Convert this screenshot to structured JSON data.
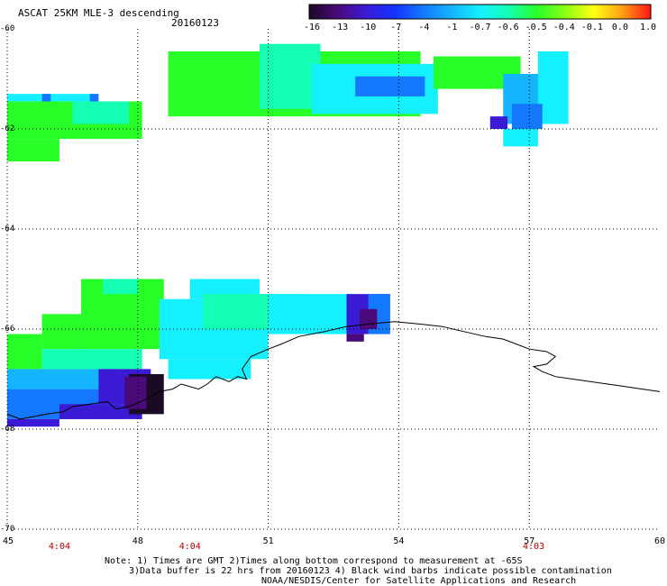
{
  "title": "ASCAT 25KM MLE-3 descending",
  "date": "20160123",
  "colorbar": {
    "labels": [
      "-16",
      "-13",
      "-10",
      "-7",
      "-4",
      "-1",
      "-0.7",
      "-0.6",
      "-0.5",
      "-0.4",
      "-0.1",
      "0.0",
      "1.0"
    ],
    "colors": [
      "#1a0a24",
      "#4a0a7a",
      "#3b1ad6",
      "#1432ff",
      "#1478ff",
      "#14b4ff",
      "#14f0ff",
      "#14ffb4",
      "#28ff28",
      "#8cff14",
      "#ffff14",
      "#ffa014",
      "#ff1414"
    ]
  },
  "axes": {
    "x_ticks": [
      "45",
      "48",
      "51",
      "54",
      "57",
      "60"
    ],
    "y_ticks": [
      "-60",
      "-62",
      "-64",
      "-66",
      "-68",
      "-70"
    ],
    "x_range": [
      45,
      60
    ],
    "y_range": [
      -70,
      -60
    ]
  },
  "pass_times": [
    {
      "lon": 46.2,
      "label": "4:04"
    },
    {
      "lon": 49.2,
      "label": "4:04"
    },
    {
      "lon": 57.1,
      "label": "4:03"
    }
  ],
  "notes": {
    "line1": "Note: 1) Times are GMT 2)Times along bottom correspond to measurement at -65S",
    "line2": "3)Data buffer is 22 hrs from 20160123 4) Black wind barbs indicate possible contamination",
    "line3": "NOAA/NESDIS/Center for Satellite Applications and Research"
  },
  "swaths": [
    {
      "lon0": 45.0,
      "lon1": 47.0,
      "lat0": -61.3,
      "lat1": -61.45,
      "color": "#14f0ff"
    },
    {
      "lon0": 45.0,
      "lon1": 48.1,
      "lat0": -61.45,
      "lat1": -62.2,
      "color": "#28ff28"
    },
    {
      "lon0": 46.5,
      "lon1": 47.8,
      "lat0": -61.45,
      "lat1": -61.9,
      "color": "#14ffb4"
    },
    {
      "lon0": 45.0,
      "lon1": 46.2,
      "lat0": -62.2,
      "lat1": -62.65,
      "color": "#28ff28"
    },
    {
      "lon0": 46.9,
      "lon1": 47.1,
      "lat0": -61.3,
      "lat1": -61.45,
      "color": "#1478ff"
    },
    {
      "lon0": 45.8,
      "lon1": 46.0,
      "lat0": -61.3,
      "lat1": -61.45,
      "color": "#1478ff"
    },
    {
      "lon0": 48.7,
      "lon1": 54.5,
      "lat0": -60.45,
      "lat1": -61.75,
      "color": "#28ff28"
    },
    {
      "lon0": 50.8,
      "lon1": 52.2,
      "lat0": -60.3,
      "lat1": -61.6,
      "color": "#14ffb4"
    },
    {
      "lon0": 52.0,
      "lon1": 54.9,
      "lat0": -60.7,
      "lat1": -61.7,
      "color": "#14f0ff"
    },
    {
      "lon0": 53.0,
      "lon1": 54.6,
      "lat0": -60.95,
      "lat1": -61.35,
      "color": "#1478ff"
    },
    {
      "lon0": 54.8,
      "lon1": 56.8,
      "lat0": -60.55,
      "lat1": -61.2,
      "color": "#28ff28"
    },
    {
      "lon0": 56.4,
      "lon1": 57.8,
      "lat0": -60.9,
      "lat1": -61.9,
      "color": "#14b4ff"
    },
    {
      "lon0": 57.2,
      "lon1": 57.9,
      "lat0": -60.45,
      "lat1": -61.9,
      "color": "#14f0ff"
    },
    {
      "lon0": 56.6,
      "lon1": 57.3,
      "lat0": -61.5,
      "lat1": -62.0,
      "color": "#1478ff"
    },
    {
      "lon0": 56.1,
      "lon1": 56.5,
      "lat0": -61.75,
      "lat1": -62.0,
      "color": "#3b1ad6"
    },
    {
      "lon0": 56.4,
      "lon1": 57.2,
      "lat0": -62.0,
      "lat1": -62.35,
      "color": "#14f0ff"
    },
    {
      "lon0": 46.7,
      "lon1": 48.6,
      "lat0": -65.0,
      "lat1": -66.4,
      "color": "#28ff28"
    },
    {
      "lon0": 47.2,
      "lon1": 48.0,
      "lat0": -65.0,
      "lat1": -65.3,
      "color": "#14ffb4"
    },
    {
      "lon0": 45.8,
      "lon1": 46.7,
      "lat0": -65.7,
      "lat1": -66.4,
      "color": "#28ff28"
    },
    {
      "lon0": 45.0,
      "lon1": 45.8,
      "lat0": -66.1,
      "lat1": -66.8,
      "color": "#28ff28"
    },
    {
      "lon0": 45.8,
      "lon1": 48.1,
      "lat0": -66.4,
      "lat1": -66.8,
      "color": "#14ffb4"
    },
    {
      "lon0": 48.5,
      "lon1": 51.0,
      "lat0": -65.4,
      "lat1": -66.6,
      "color": "#14f0ff"
    },
    {
      "lon0": 49.2,
      "lon1": 50.8,
      "lat0": -65.0,
      "lat1": -65.4,
      "color": "#14f0ff"
    },
    {
      "lon0": 49.5,
      "lon1": 51.8,
      "lat0": -65.3,
      "lat1": -66.0,
      "color": "#14ffb4"
    },
    {
      "lon0": 51.0,
      "lon1": 53.0,
      "lat0": -65.3,
      "lat1": -66.1,
      "color": "#14f0ff"
    },
    {
      "lon0": 52.8,
      "lon1": 53.8,
      "lat0": -65.3,
      "lat1": -66.1,
      "color": "#3b1ad6"
    },
    {
      "lon0": 53.3,
      "lon1": 53.8,
      "lat0": -65.3,
      "lat1": -66.1,
      "color": "#1478ff"
    },
    {
      "lon0": 53.1,
      "lon1": 53.5,
      "lat0": -65.6,
      "lat1": -66.0,
      "color": "#4a0a7a"
    },
    {
      "lon0": 52.8,
      "lon1": 53.2,
      "lat0": -66.1,
      "lat1": -66.25,
      "color": "#4a0a7a"
    },
    {
      "lon0": 48.7,
      "lon1": 50.6,
      "lat0": -66.6,
      "lat1": -67.0,
      "color": "#14f0ff"
    },
    {
      "lon0": 45.0,
      "lon1": 47.6,
      "lat0": -66.8,
      "lat1": -67.2,
      "color": "#14b4ff"
    },
    {
      "lon0": 45.0,
      "lon1": 47.6,
      "lat0": -67.2,
      "lat1": -67.8,
      "color": "#1478ff"
    },
    {
      "lon0": 45.0,
      "lon1": 46.2,
      "lat0": -67.8,
      "lat1": -67.95,
      "color": "#3b1ad6"
    },
    {
      "lon0": 46.2,
      "lon1": 48.1,
      "lat0": -67.5,
      "lat1": -67.8,
      "color": "#3b1ad6"
    },
    {
      "lon0": 47.1,
      "lon1": 48.3,
      "lat0": -66.8,
      "lat1": -67.5,
      "color": "#3b1ad6"
    },
    {
      "lon0": 47.8,
      "lon1": 48.6,
      "lat0": -66.9,
      "lat1": -67.7,
      "color": "#1a0a24"
    },
    {
      "lon0": 47.7,
      "lon1": 48.2,
      "lat0": -66.95,
      "lat1": -67.6,
      "color": "#4a0a7a"
    }
  ],
  "coastline": [
    [
      45.0,
      -67.7
    ],
    [
      45.3,
      -67.8
    ],
    [
      45.6,
      -67.75
    ],
    [
      45.9,
      -67.7
    ],
    [
      46.3,
      -67.65
    ],
    [
      46.5,
      -67.55
    ],
    [
      46.9,
      -67.5
    ],
    [
      47.3,
      -67.45
    ],
    [
      47.5,
      -67.6
    ],
    [
      47.8,
      -67.55
    ],
    [
      48.2,
      -67.4
    ],
    [
      48.5,
      -67.25
    ],
    [
      48.8,
      -67.2
    ],
    [
      49.0,
      -67.1
    ],
    [
      49.4,
      -67.2
    ],
    [
      49.6,
      -67.1
    ],
    [
      49.8,
      -66.95
    ],
    [
      50.1,
      -67.05
    ],
    [
      50.3,
      -66.95
    ],
    [
      50.5,
      -67.0
    ],
    [
      50.4,
      -66.8
    ],
    [
      50.6,
      -66.55
    ],
    [
      51.0,
      -66.4
    ],
    [
      51.3,
      -66.3
    ],
    [
      51.7,
      -66.15
    ],
    [
      52.3,
      -66.05
    ],
    [
      52.8,
      -65.95
    ],
    [
      53.3,
      -65.9
    ],
    [
      53.9,
      -65.85
    ],
    [
      54.5,
      -65.9
    ],
    [
      55.0,
      -65.95
    ],
    [
      55.5,
      -66.05
    ],
    [
      56.0,
      -66.15
    ],
    [
      56.4,
      -66.2
    ],
    [
      56.7,
      -66.3
    ],
    [
      57.0,
      -66.4
    ],
    [
      57.4,
      -66.45
    ],
    [
      57.6,
      -66.55
    ],
    [
      57.4,
      -66.7
    ],
    [
      57.1,
      -66.75
    ],
    [
      57.3,
      -66.85
    ],
    [
      57.6,
      -66.95
    ],
    [
      58.0,
      -67.0
    ],
    [
      58.4,
      -67.05
    ],
    [
      58.8,
      -67.1
    ],
    [
      59.2,
      -67.15
    ],
    [
      59.6,
      -67.2
    ],
    [
      60.0,
      -67.25
    ]
  ]
}
